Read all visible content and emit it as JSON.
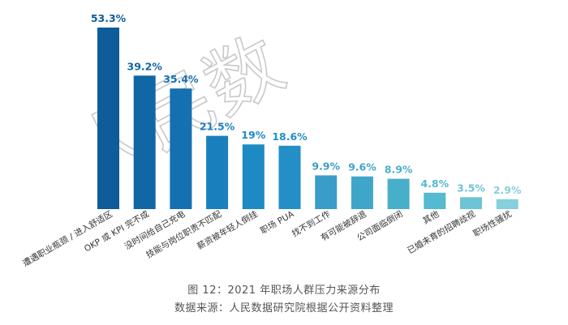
{
  "watermark_text": "人民数",
  "caption": {
    "title": "图 12：2021 年职场人群压力来源分布",
    "source": "数据来源：人民数据研究院根据公开资料整理"
  },
  "chart_data": {
    "type": "bar",
    "categories": [
      "遭遇职业瓶颈 / 进入舒适区",
      "OKP 或 KPI 完不成",
      "没时间给自己充电",
      "技能与岗位职责不匹配",
      "薪资被年轻人倒挂",
      "职场 PUA",
      "找不到工作",
      "有可能被辞退",
      "公司面临倒闭",
      "其他",
      "已婚未育的招聘歧视",
      "职场性骚扰"
    ],
    "values": [
      53.3,
      39.2,
      35.4,
      21.5,
      19,
      18.6,
      9.9,
      9.6,
      8.9,
      4.8,
      3.5,
      2.9
    ],
    "labels": [
      "53.3%",
      "39.2%",
      "35.4%",
      "21.5%",
      "19%",
      "18.6%",
      "9.9%",
      "9.6%",
      "8.9%",
      "4.8%",
      "3.5%",
      "2.9%"
    ],
    "colors": [
      "#0e5c99",
      "#1166a6",
      "#1470b0",
      "#1a80bd",
      "#1d8ac4",
      "#238fc6",
      "#3a9cc8",
      "#3fa6c9",
      "#48afca",
      "#55b9cf",
      "#6ec4d6",
      "#86cfdc"
    ],
    "title": "图 12：2021 年职场人群压力来源分布",
    "xlabel": "",
    "ylabel": "",
    "ylim": [
      0,
      55
    ],
    "grid": false,
    "legend": "none"
  }
}
